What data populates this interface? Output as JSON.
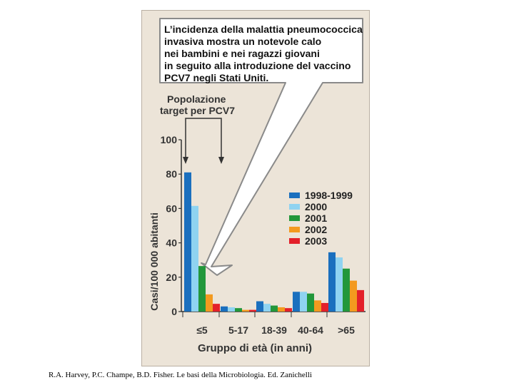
{
  "callout_lines": [
    "L’incidenza della malattia pneumococcica",
    "invasiva mostra un notevole calo",
    "nei bambini e nei ragazzi giovani",
    "in seguito alla introduzione del vaccino",
    "PCV7 negli Stati Uniti."
  ],
  "target_label_lines": [
    "Popolazione",
    "target per PCV7"
  ],
  "citation": "R.A. Harvey, P.C. Champe, B.D. Fisher. Le basi della Microbiologia. Ed. Zanichelli",
  "chart_data": {
    "type": "bar",
    "title": "",
    "xlabel": "Gruppo di età (in anni)",
    "ylabel": "Casi/100 000 abitanti",
    "ylim": [
      0,
      100
    ],
    "yticks": [
      "0",
      "20",
      "40",
      "60",
      "80",
      "100"
    ],
    "grid": false,
    "legend_position": "right",
    "categories": [
      "≤5",
      "5-17",
      "18-39",
      "40-64",
      ">65"
    ],
    "series": [
      {
        "name": "1998-1999",
        "color": "#1a6fbe",
        "values": [
          81,
          3,
          6,
          11.5,
          34.5
        ]
      },
      {
        "name": "2000",
        "color": "#8fd3f1",
        "values": [
          61.5,
          2.5,
          4.5,
          11.5,
          31.5
        ]
      },
      {
        "name": "2001",
        "color": "#22973b",
        "values": [
          26.5,
          2,
          3.5,
          10.5,
          25
        ]
      },
      {
        "name": "2002",
        "color": "#f39a1f",
        "values": [
          10,
          1,
          2.5,
          6.5,
          18
        ]
      },
      {
        "name": "2003",
        "color": "#e3202a",
        "values": [
          4.5,
          1,
          2,
          5,
          12.5
        ]
      }
    ]
  }
}
